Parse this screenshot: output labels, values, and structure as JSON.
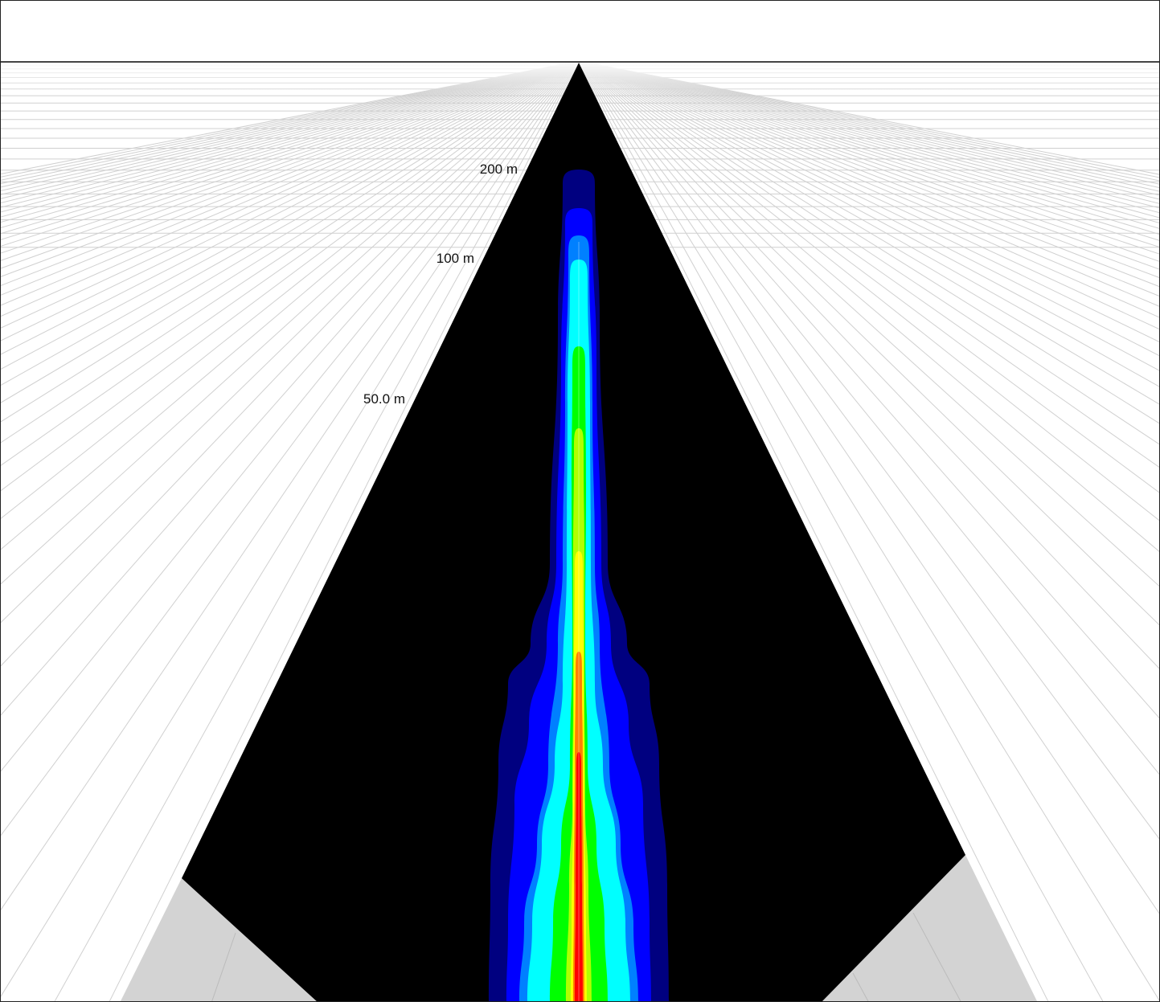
{
  "range_rings": {
    "ring_200": "200 m",
    "ring_100": "100 m",
    "ring_50": "50.0 m"
  },
  "plume": {
    "colors": [
      "#000080",
      "#0000ff",
      "#0080ff",
      "#00ffff",
      "#00ff00",
      "#b0ff00",
      "#ffff00",
      "#ff8000",
      "#ff0000"
    ],
    "ring_color": "#ffffff"
  },
  "scene": {
    "background": "#ffffff",
    "fan_color": "#000000",
    "ground_color": "#d3d3d3",
    "grid_color": "#d0d0d0",
    "horizon_color": "#444444"
  }
}
